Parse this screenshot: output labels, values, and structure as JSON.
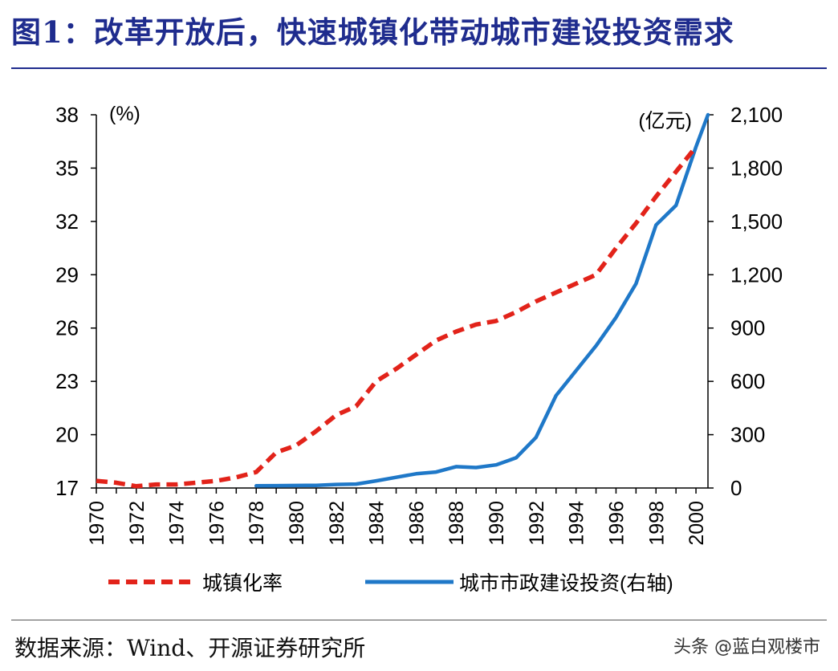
{
  "title": "图1：改革开放后，快速城镇化带动城市建设投资需求",
  "source": "数据来源：Wind、开源证券研究所",
  "watermark": "头条 @蓝白观楼市",
  "colors": {
    "urbanization": "#e2231a",
    "investment": "#1f78c8",
    "title": "#1f2c8e"
  },
  "chart_data": {
    "type": "line",
    "x": [
      1970,
      1971,
      1972,
      1973,
      1974,
      1975,
      1976,
      1977,
      1978,
      1979,
      1980,
      1981,
      1982,
      1983,
      1984,
      1985,
      1986,
      1987,
      1988,
      1989,
      1990,
      1991,
      1992,
      1993,
      1994,
      1995,
      1996,
      1997,
      1998,
      1999,
      2000
    ],
    "x_ticks": [
      "1970",
      "1972",
      "1974",
      "1976",
      "1978",
      "1980",
      "1982",
      "1984",
      "1986",
      "1988",
      "1990",
      "1992",
      "1994",
      "1996",
      "1998",
      "2000"
    ],
    "xlim": [
      1970,
      2000.6
    ],
    "ylabel_left": "(%)",
    "ylabel_right": "(亿元)",
    "ylim_left": [
      17,
      38
    ],
    "ylim_right": [
      0,
      2100
    ],
    "y_ticks_left": [
      "38",
      "35",
      "32",
      "29",
      "26",
      "23",
      "20",
      "17"
    ],
    "y_ticks_right": [
      "2,100",
      "1,800",
      "1,500",
      "1,200",
      "900",
      "600",
      "300",
      "0"
    ],
    "series": [
      {
        "name": "城镇化率",
        "axis": "left",
        "style": "dashed",
        "x": [
          1970,
          1971,
          1972,
          1973,
          1974,
          1975,
          1976,
          1977,
          1978,
          1979,
          1980,
          1981,
          1982,
          1983,
          1984,
          1985,
          1986,
          1987,
          1988,
          1989,
          1990,
          1991,
          1992,
          1993,
          1994,
          1995,
          1996,
          1997,
          1998,
          1999,
          2000
        ],
        "values": [
          17.4,
          17.3,
          17.1,
          17.2,
          17.2,
          17.3,
          17.4,
          17.6,
          17.9,
          19.0,
          19.4,
          20.2,
          21.1,
          21.6,
          23.0,
          23.7,
          24.5,
          25.3,
          25.8,
          26.2,
          26.4,
          26.9,
          27.5,
          28.0,
          28.5,
          29.0,
          30.5,
          31.9,
          33.4,
          34.8,
          36.2
        ]
      },
      {
        "name": "城市市政建设投资(右轴)",
        "axis": "right",
        "style": "solid",
        "x": [
          1978,
          1979,
          1980,
          1981,
          1982,
          1983,
          1984,
          1985,
          1986,
          1987,
          1988,
          1989,
          1990,
          1991,
          1992,
          1993,
          1994,
          1995,
          1996,
          1997,
          1998,
          1999,
          2000,
          2000.6
        ],
        "values": [
          12,
          13,
          14,
          15,
          20,
          22,
          40,
          60,
          80,
          90,
          120,
          115,
          130,
          170,
          285,
          520,
          660,
          800,
          960,
          1150,
          1480,
          1590,
          1920,
          2100
        ]
      }
    ]
  }
}
